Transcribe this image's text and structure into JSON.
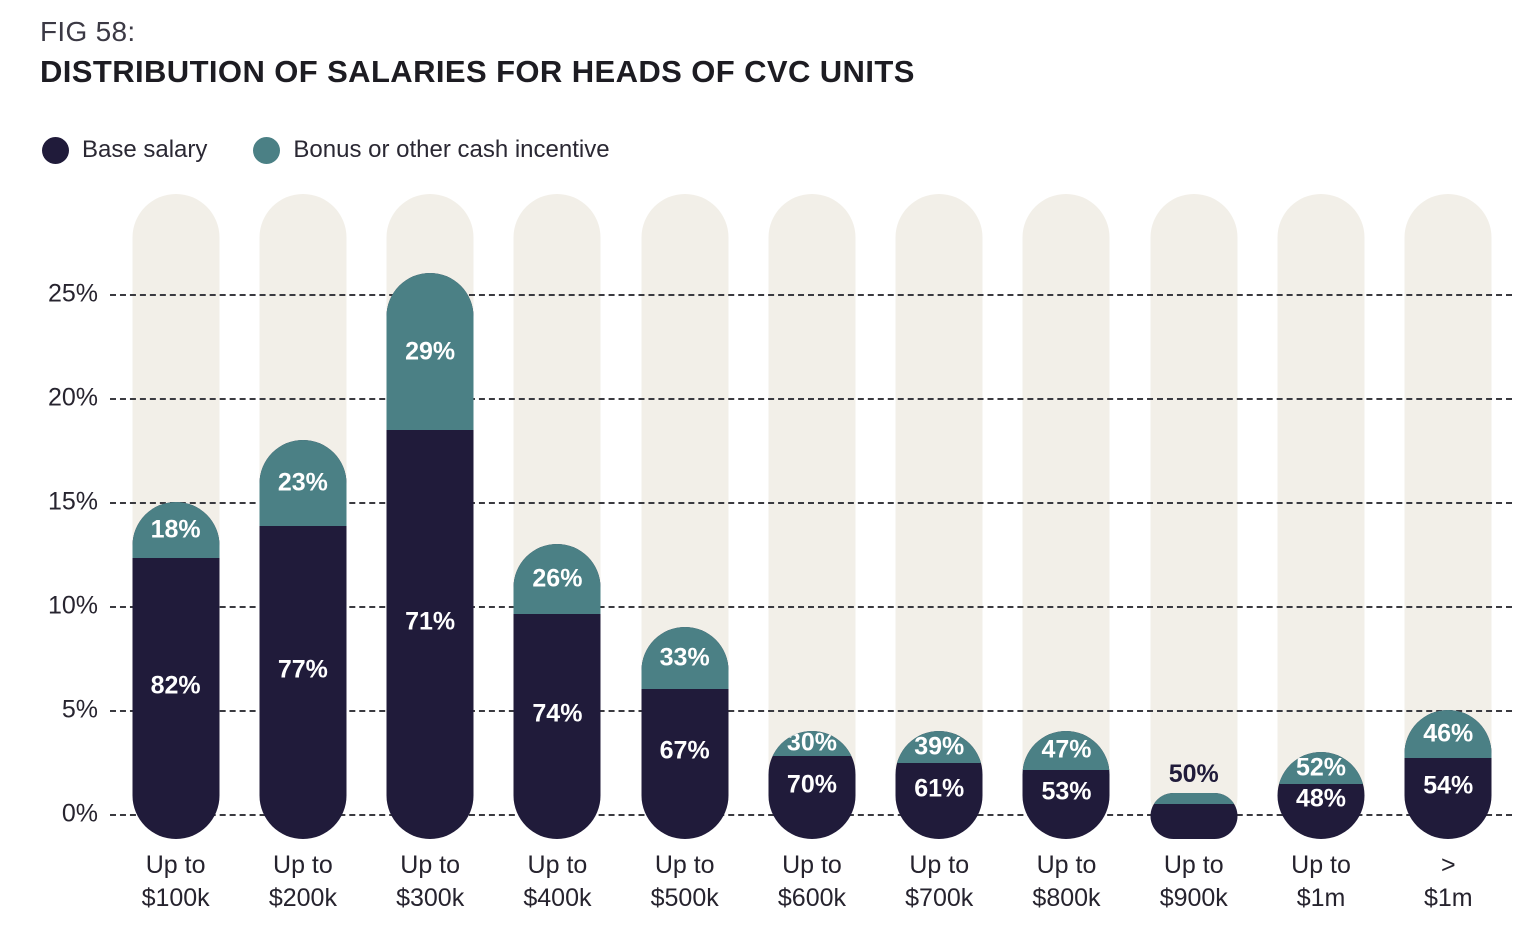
{
  "figure": {
    "fig_label": "FIG 58:",
    "title": "DISTRIBUTION OF SALARIES FOR HEADS OF CVC UNITS"
  },
  "legend": [
    {
      "label": "Base salary"
    },
    {
      "label": "Bonus or other cash incentive"
    }
  ],
  "colors": {
    "base": "#201b3a",
    "bonus": "#4b8085",
    "track": "#f2efe8",
    "grid": "#3a3a40",
    "label_on_bar": "#ffffff",
    "label_outside": "#201b3a"
  },
  "chart_data": {
    "type": "bar",
    "stacked": true,
    "title": "DISTRIBUTION OF SALARIES FOR HEADS OF CVC UNITS",
    "ylim": [
      0,
      25
    ],
    "grid": "dashed horizontal gridlines every 5%",
    "legend_position": "top-left",
    "note": "Bar height = % of respondents in salary bracket; in-bar labels = split between base salary and bonus/other cash incentive",
    "gridlines": [
      {
        "value": 0,
        "label": "0%"
      },
      {
        "value": 5,
        "label": "5%"
      },
      {
        "value": 10,
        "label": "10%"
      },
      {
        "value": 15,
        "label": "15%"
      },
      {
        "value": 20,
        "label": "20%"
      },
      {
        "value": 25,
        "label": "25%"
      }
    ],
    "categories": [
      "Up to $100k",
      "Up to $200k",
      "Up to $300k",
      "Up to $400k",
      "Up to $500k",
      "Up to $600k",
      "Up to $700k",
      "Up to $800k",
      "Up to $900k",
      "Up to $1m",
      "> $1m"
    ],
    "series": [
      {
        "name": "Base salary",
        "values_pct_of_total_height": [
          12.3,
          13.9,
          18.5,
          9.6,
          6.0,
          2.8,
          2.4,
          2.1,
          0.5,
          1.4,
          2.7
        ]
      },
      {
        "name": "Bonus or other cash incentive",
        "values_pct_of_total_height": [
          2.7,
          4.1,
          7.5,
          3.4,
          3.0,
          1.2,
          1.6,
          1.9,
          0.5,
          1.6,
          2.3
        ]
      }
    ],
    "bars": [
      {
        "cat1": "Up to",
        "cat2": "$100k",
        "total": 15,
        "base": {
          "share": 82,
          "label": "82%"
        },
        "bonus": {
          "share": 18,
          "label": "18%"
        }
      },
      {
        "cat1": "Up to",
        "cat2": "$200k",
        "total": 18,
        "base": {
          "share": 77,
          "label": "77%"
        },
        "bonus": {
          "share": 23,
          "label": "23%"
        }
      },
      {
        "cat1": "Up to",
        "cat2": "$300k",
        "total": 26,
        "base": {
          "share": 71,
          "label": "71%"
        },
        "bonus": {
          "share": 29,
          "label": "29%"
        }
      },
      {
        "cat1": "Up to",
        "cat2": "$400k",
        "total": 13,
        "base": {
          "share": 74,
          "label": "74%"
        },
        "bonus": {
          "share": 26,
          "label": "26%"
        }
      },
      {
        "cat1": "Up to",
        "cat2": "$500k",
        "total": 9,
        "base": {
          "share": 67,
          "label": "67%"
        },
        "bonus": {
          "share": 33,
          "label": "33%"
        }
      },
      {
        "cat1": "Up to",
        "cat2": "$600k",
        "total": 4,
        "base": {
          "share": 70,
          "label": "70%"
        },
        "bonus": {
          "share": 30,
          "label": "30%"
        }
      },
      {
        "cat1": "Up to",
        "cat2": "$700k",
        "total": 4,
        "base": {
          "share": 61,
          "label": "61%"
        },
        "bonus": {
          "share": 39,
          "label": "39%"
        }
      },
      {
        "cat1": "Up to",
        "cat2": "$800k",
        "total": 4,
        "base": {
          "share": 53,
          "label": "53%"
        },
        "bonus": {
          "share": 47,
          "label": "47%"
        }
      },
      {
        "cat1": "Up to",
        "cat2": "$900k",
        "total": 1,
        "base": {
          "share": 50,
          "label": "50%",
          "outside": true
        },
        "bonus": {
          "share": 50,
          "label": ""
        }
      },
      {
        "cat1": "Up to",
        "cat2": "$1m",
        "total": 3,
        "base": {
          "share": 48,
          "label": "48%"
        },
        "bonus": {
          "share": 52,
          "label": "52%"
        }
      },
      {
        "cat1": ">",
        "cat2": "$1m",
        "total": 5,
        "base": {
          "share": 54,
          "label": "54%"
        },
        "bonus": {
          "share": 46,
          "label": "46%"
        }
      }
    ]
  }
}
